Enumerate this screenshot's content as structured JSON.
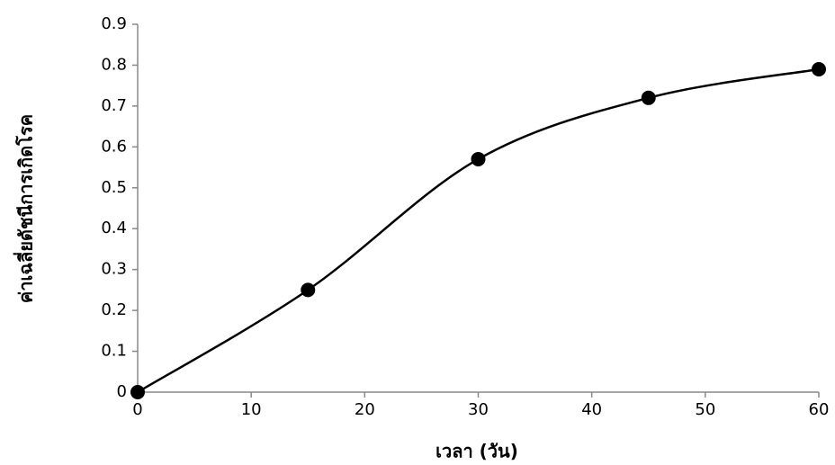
{
  "chart_data": {
    "type": "line",
    "xlabel": "เวลา (วัน)",
    "ylabel": "ค่าเฉลี่ยดัชนีการเกิดโรค",
    "x": [
      0,
      15,
      30,
      45,
      60
    ],
    "series": [
      {
        "color": "#000000",
        "values": [
          0,
          0.25,
          0.57,
          0.72,
          0.79
        ]
      }
    ],
    "xlim": [
      0,
      60
    ],
    "xticks": [
      0,
      10,
      20,
      30,
      40,
      50,
      60
    ],
    "ylim": [
      0,
      0.9
    ],
    "yticks": [
      0,
      0.1,
      0.2,
      0.3,
      0.4,
      0.5,
      0.6,
      0.7,
      0.8,
      0.9
    ],
    "smooth": true,
    "markers": true
  }
}
